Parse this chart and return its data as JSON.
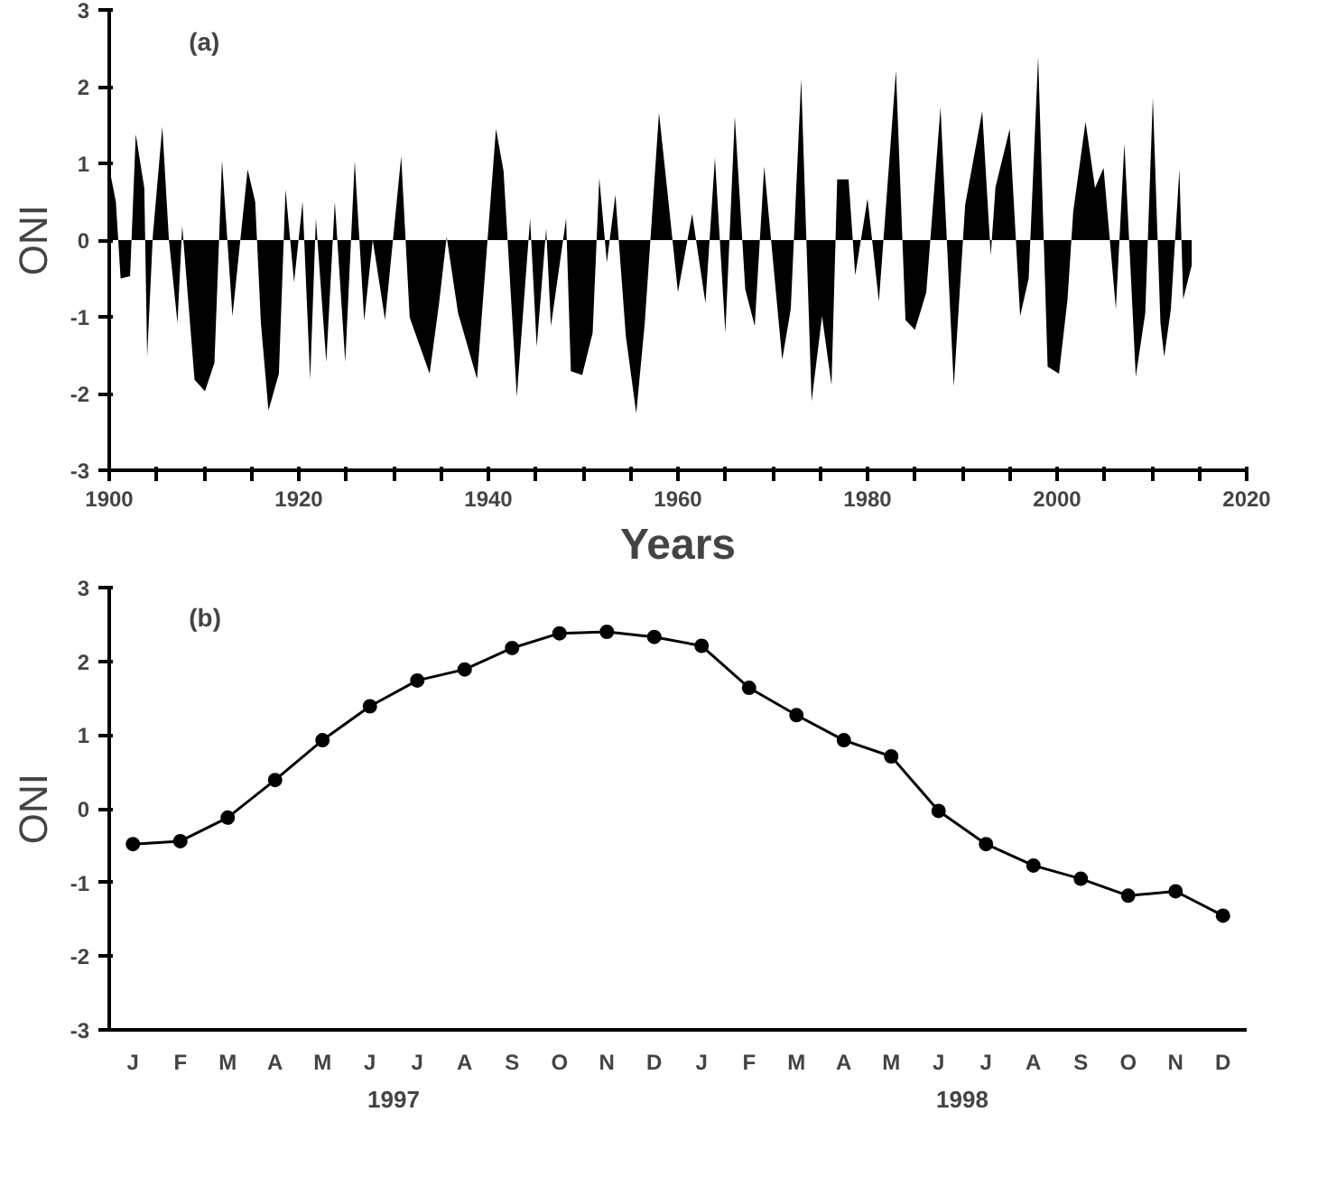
{
  "chart_data": [
    {
      "type": "area",
      "title": "(a)",
      "xlabel": "Years",
      "ylabel": "ONI",
      "x": [
        1900.0,
        1900.7,
        1901.2,
        1902.2,
        1902.8,
        1903.7,
        1904.0,
        1904.6,
        1905.6,
        1906.3,
        1907.2,
        1907.7,
        1909.0,
        1910.1,
        1911.1,
        1911.9,
        1913.0,
        1914.6,
        1915.4,
        1916.0,
        1916.8,
        1917.9,
        1918.6,
        1919.5,
        1920.4,
        1921.2,
        1921.8,
        1922.9,
        1923.8,
        1924.9,
        1925.9,
        1926.9,
        1927.8,
        1929.1,
        1930.8,
        1931.7,
        1933.8,
        1934.8,
        1935.6,
        1936.8,
        1938.8,
        1940.8,
        1941.6,
        1943.0,
        1944.4,
        1945.1,
        1946.1,
        1946.6,
        1948.2,
        1948.7,
        1949.9,
        1951.0,
        1951.7,
        1952.5,
        1953.4,
        1954.5,
        1955.6,
        1956.5,
        1958.0,
        1959.0,
        1960.0,
        1961.5,
        1962.9,
        1963.9,
        1965.0,
        1966.0,
        1967.1,
        1968.1,
        1969.1,
        1971.0,
        1971.9,
        1973.0,
        1974.1,
        1975.2,
        1976.2,
        1976.8,
        1978.0,
        1978.7,
        1980.0,
        1981.2,
        1983.0,
        1984.0,
        1985.0,
        1986.2,
        1987.7,
        1989.1,
        1990.3,
        1992.1,
        1993.0,
        1993.5,
        1995.0,
        1996.1,
        1997.0,
        1998.0,
        1999.0,
        2000.2,
        2001.1,
        2001.7,
        2003.0,
        2004.0,
        2004.9,
        2006.2,
        2007.1,
        2008.3,
        2009.3,
        2010.1,
        2010.9,
        2011.3,
        2012.0,
        2012.9,
        2013.3,
        2014.2
      ],
      "series": [
        {
          "color": "#000000",
          "values": [
            0.94,
            0.5,
            -0.5,
            -0.47,
            1.38,
            0.68,
            -1.52,
            0.06,
            1.48,
            0.0,
            -1.08,
            0.19,
            -1.82,
            -1.97,
            -1.6,
            1.04,
            -0.99,
            0.92,
            0.5,
            -1.08,
            -2.22,
            -1.74,
            0.66,
            -0.55,
            0.5,
            -1.82,
            0.28,
            -1.59,
            0.5,
            -1.59,
            1.03,
            -1.05,
            0.0,
            -1.04,
            1.09,
            -1.01,
            -1.74,
            -0.82,
            0.04,
            -0.95,
            -1.81,
            1.45,
            0.9,
            -2.04,
            0.28,
            -1.39,
            0.15,
            -1.12,
            0.28,
            -1.71,
            -1.76,
            -1.21,
            0.81,
            -0.29,
            0.59,
            -1.25,
            -2.26,
            -1.08,
            1.66,
            0.5,
            -0.68,
            0.34,
            -0.82,
            1.07,
            -1.21,
            1.61,
            -0.64,
            -1.12,
            0.96,
            -1.56,
            -0.9,
            2.1,
            -2.1,
            -0.99,
            -1.89,
            0.79,
            0.79,
            -0.46,
            0.54,
            -0.8,
            2.21,
            -1.04,
            -1.17,
            -0.68,
            1.73,
            -1.91,
            0.46,
            1.68,
            -0.2,
            0.69,
            1.45,
            -0.99,
            -0.5,
            2.39,
            -1.65,
            -1.74,
            -0.77,
            0.37,
            1.54,
            0.68,
            0.94,
            -0.9,
            1.26,
            -1.78,
            -0.95,
            1.86,
            -1.08,
            -1.52,
            -0.9,
            0.92,
            -0.77,
            -0.33
          ]
        }
      ],
      "xlim": [
        1900,
        2020
      ],
      "ylim": [
        -3,
        3
      ],
      "xticks": [
        1900,
        {
          "value": 1905,
          "label": null
        },
        {
          "value": 1910,
          "label": null
        },
        {
          "value": 1915,
          "label": null
        },
        1920,
        {
          "value": 1925,
          "label": null
        },
        {
          "value": 1930,
          "label": null
        },
        {
          "value": 1935,
          "label": null
        },
        1940,
        {
          "value": 1945,
          "label": null
        },
        {
          "value": 1950,
          "label": null
        },
        {
          "value": 1955,
          "label": null
        },
        1960,
        {
          "value": 1965,
          "label": null
        },
        {
          "value": 1970,
          "label": null
        },
        {
          "value": 1975,
          "label": null
        },
        1980,
        {
          "value": 1985,
          "label": null
        },
        {
          "value": 1990,
          "label": null
        },
        {
          "value": 1995,
          "label": null
        },
        2000,
        {
          "value": 2005,
          "label": null
        },
        {
          "value": 2010,
          "label": null
        },
        {
          "value": 2015,
          "label": null
        },
        2020
      ],
      "yticks": [
        -3,
        -2,
        -1,
        0,
        1,
        2,
        3
      ]
    },
    {
      "type": "line",
      "title": "(b)",
      "ylabel": "ONI",
      "marker": "circle",
      "line_style": "solid",
      "categories": [
        "J",
        "F",
        "M",
        "A",
        "M",
        "J",
        "J",
        "A",
        "S",
        "O",
        "N",
        "D",
        "J",
        "F",
        "M",
        "A",
        "M",
        "J",
        "J",
        "A",
        "S",
        "O",
        "N",
        "D"
      ],
      "series": [
        {
          "color": "#000000",
          "values": [
            -0.48,
            -0.44,
            -0.12,
            0.39,
            0.93,
            1.39,
            1.74,
            1.89,
            2.18,
            2.38,
            2.4,
            2.33,
            2.21,
            1.64,
            1.27,
            0.93,
            0.71,
            -0.03,
            -0.48,
            -0.77,
            -0.95,
            -1.18,
            -1.12,
            -1.45
          ]
        }
      ],
      "ylim": [
        -3,
        3
      ],
      "yticks": [
        -3,
        -2,
        -1,
        0,
        1,
        2,
        3
      ],
      "annotations": [
        "1997",
        "1998"
      ]
    }
  ]
}
